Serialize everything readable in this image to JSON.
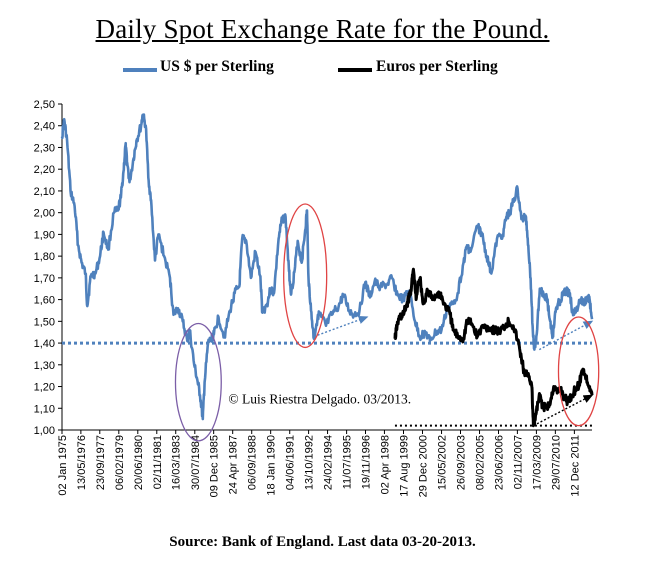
{
  "chart_data": {
    "type": "line",
    "title": "Daily Spot Exchange Rate for the Pound.",
    "source": "Source: Bank of England. Last data 03-20-2013.",
    "annotation": "© Luis Riestra Delgado. 03/2013.",
    "ylim": [
      1.0,
      2.5
    ],
    "yticks": [
      "1,00",
      "1,10",
      "1,20",
      "1,30",
      "1,40",
      "1,50",
      "1,60",
      "1,70",
      "1,80",
      "1,90",
      "2,00",
      "2,10",
      "2,20",
      "2,30",
      "2,40",
      "2,50"
    ],
    "xlim": [
      "1975-01-02",
      "2013-03-20"
    ],
    "xticks": [
      {
        "date": "1975-01-02",
        "label": "02 Jan 1975"
      },
      {
        "date": "1976-05-13",
        "label": "13/05/1976"
      },
      {
        "date": "1977-09-23",
        "label": "23/09/1977"
      },
      {
        "date": "1979-02-06",
        "label": "06/02/1979"
      },
      {
        "date": "1980-06-20",
        "label": "20/06/1980"
      },
      {
        "date": "1981-11-02",
        "label": "02/11/1981"
      },
      {
        "date": "1983-03-16",
        "label": "16/03/1983"
      },
      {
        "date": "1984-07-30",
        "label": "30/07/1984"
      },
      {
        "date": "1985-12-09",
        "label": "09 Dec 1985"
      },
      {
        "date": "1987-04-24",
        "label": "24 Apr 1987"
      },
      {
        "date": "1988-09-06",
        "label": "06/09/1988"
      },
      {
        "date": "1990-01-18",
        "label": "18 Jan 1990"
      },
      {
        "date": "1991-06-04",
        "label": "04/06/1991"
      },
      {
        "date": "1992-10-13",
        "label": "13/10/1992"
      },
      {
        "date": "1994-02-24",
        "label": "24/02/1994"
      },
      {
        "date": "1995-07-11",
        "label": "11/07/1995"
      },
      {
        "date": "1996-11-19",
        "label": "19/11/1996"
      },
      {
        "date": "1998-04-02",
        "label": "02 Apr 1998"
      },
      {
        "date": "1999-08-17",
        "label": "17 Aug 1999"
      },
      {
        "date": "2000-12-29",
        "label": "29 Dec 2000"
      },
      {
        "date": "2002-05-15",
        "label": "15/05/2002"
      },
      {
        "date": "2003-09-26",
        "label": "26/09/2003"
      },
      {
        "date": "2005-02-08",
        "label": "08/02/2005"
      },
      {
        "date": "2006-06-23",
        "label": "23/06/2006"
      },
      {
        "date": "2007-11-02",
        "label": "02/11/2007"
      },
      {
        "date": "2009-03-17",
        "label": "17/03/2009"
      },
      {
        "date": "2010-07-29",
        "label": "29/07/2010"
      },
      {
        "date": "2011-12-12",
        "label": "12 Dec 2011"
      }
    ],
    "legend": {
      "placement": "top"
    },
    "series": [
      {
        "name": "US $ per Sterling",
        "color": "#4f81bd",
        "points": [
          [
            "1975-01-02",
            2.35
          ],
          [
            "1975-03-01",
            2.43
          ],
          [
            "1975-05-15",
            2.33
          ],
          [
            "1975-08-15",
            2.1
          ],
          [
            "1975-12-01",
            2.03
          ],
          [
            "1976-03-01",
            1.85
          ],
          [
            "1976-06-01",
            1.77
          ],
          [
            "1976-09-15",
            1.72
          ],
          [
            "1976-10-28",
            1.57
          ],
          [
            "1977-02-01",
            1.71
          ],
          [
            "1977-06-01",
            1.72
          ],
          [
            "1977-10-01",
            1.8
          ],
          [
            "1977-12-30",
            1.91
          ],
          [
            "1978-05-01",
            1.83
          ],
          [
            "1978-10-01",
            2.0
          ],
          [
            "1979-01-15",
            2.01
          ],
          [
            "1979-04-01",
            2.07
          ],
          [
            "1979-06-10",
            2.19
          ],
          [
            "1979-08-01",
            2.31
          ],
          [
            "1979-09-15",
            2.23
          ],
          [
            "1979-11-15",
            2.14
          ],
          [
            "1980-03-01",
            2.25
          ],
          [
            "1980-05-15",
            2.33
          ],
          [
            "1980-09-15",
            2.4
          ],
          [
            "1980-10-28",
            2.45
          ],
          [
            "1981-01-15",
            2.4
          ],
          [
            "1981-04-01",
            2.15
          ],
          [
            "1981-06-15",
            2.03
          ],
          [
            "1981-09-15",
            1.78
          ],
          [
            "1981-12-15",
            1.9
          ],
          [
            "1982-05-15",
            1.8
          ],
          [
            "1982-10-15",
            1.7
          ],
          [
            "1983-01-15",
            1.53
          ],
          [
            "1983-05-15",
            1.56
          ],
          [
            "1983-09-15",
            1.5
          ],
          [
            "1984-01-15",
            1.41
          ],
          [
            "1984-03-15",
            1.46
          ],
          [
            "1984-07-15",
            1.3
          ],
          [
            "1984-10-15",
            1.22
          ],
          [
            "1984-12-15",
            1.16
          ],
          [
            "1985-02-26",
            1.05
          ],
          [
            "1985-04-15",
            1.22
          ],
          [
            "1985-07-15",
            1.4
          ],
          [
            "1985-10-15",
            1.42
          ],
          [
            "1985-12-15",
            1.44
          ],
          [
            "1986-04-15",
            1.52
          ],
          [
            "1986-09-15",
            1.43
          ],
          [
            "1987-02-15",
            1.55
          ],
          [
            "1987-06-15",
            1.63
          ],
          [
            "1987-10-15",
            1.66
          ],
          [
            "1987-12-31",
            1.88
          ],
          [
            "1988-04-15",
            1.87
          ],
          [
            "1988-08-15",
            1.7
          ],
          [
            "1988-12-15",
            1.82
          ],
          [
            "1989-04-15",
            1.71
          ],
          [
            "1989-06-15",
            1.54
          ],
          [
            "1989-10-15",
            1.58
          ],
          [
            "1990-01-15",
            1.65
          ],
          [
            "1990-04-15",
            1.63
          ],
          [
            "1990-08-15",
            1.88
          ],
          [
            "1990-11-15",
            1.97
          ],
          [
            "1991-02-15",
            1.98
          ],
          [
            "1991-05-15",
            1.73
          ],
          [
            "1991-07-15",
            1.63
          ],
          [
            "1991-10-15",
            1.74
          ],
          [
            "1991-12-31",
            1.87
          ],
          [
            "1992-04-15",
            1.77
          ],
          [
            "1992-07-15",
            1.92
          ],
          [
            "1992-09-01",
            2.01
          ],
          [
            "1992-10-10",
            1.7
          ],
          [
            "1992-12-15",
            1.55
          ],
          [
            "1993-03-01",
            1.42
          ],
          [
            "1993-06-15",
            1.53
          ],
          [
            "1993-09-15",
            1.52
          ],
          [
            "1994-01-15",
            1.48
          ],
          [
            "1994-06-15",
            1.53
          ],
          [
            "1994-12-15",
            1.57
          ],
          [
            "1995-04-15",
            1.62
          ],
          [
            "1995-09-15",
            1.55
          ],
          [
            "1996-01-15",
            1.53
          ],
          [
            "1996-06-15",
            1.55
          ],
          [
            "1996-11-15",
            1.68
          ],
          [
            "1997-03-15",
            1.61
          ],
          [
            "1997-07-15",
            1.68
          ],
          [
            "1997-12-15",
            1.66
          ],
          [
            "1998-06-15",
            1.67
          ],
          [
            "1998-10-15",
            1.7
          ],
          [
            "1999-03-15",
            1.62
          ],
          [
            "1999-08-15",
            1.6
          ],
          [
            "2000-01-15",
            1.64
          ],
          [
            "2000-06-15",
            1.5
          ],
          [
            "2000-10-15",
            1.43
          ],
          [
            "2001-03-15",
            1.45
          ],
          [
            "2001-07-15",
            1.41
          ],
          [
            "2001-12-15",
            1.45
          ],
          [
            "2002-05-15",
            1.46
          ],
          [
            "2002-10-15",
            1.56
          ],
          [
            "2003-03-15",
            1.58
          ],
          [
            "2003-07-15",
            1.63
          ],
          [
            "2003-12-15",
            1.77
          ],
          [
            "2004-03-15",
            1.85
          ],
          [
            "2004-06-15",
            1.82
          ],
          [
            "2004-12-15",
            1.94
          ],
          [
            "2005-04-15",
            1.9
          ],
          [
            "2005-08-15",
            1.8
          ],
          [
            "2005-12-15",
            1.72
          ],
          [
            "2006-05-15",
            1.88
          ],
          [
            "2006-10-15",
            1.9
          ],
          [
            "2007-01-15",
            1.98
          ],
          [
            "2007-04-15",
            2.0
          ],
          [
            "2007-07-15",
            2.05
          ],
          [
            "2007-11-08",
            2.11
          ],
          [
            "2008-02-15",
            1.97
          ],
          [
            "2008-06-15",
            1.98
          ],
          [
            "2008-08-15",
            1.85
          ],
          [
            "2008-10-15",
            1.7
          ],
          [
            "2008-12-15",
            1.45
          ],
          [
            "2009-01-22",
            1.37
          ],
          [
            "2009-03-15",
            1.43
          ],
          [
            "2009-06-15",
            1.65
          ],
          [
            "2009-09-15",
            1.63
          ],
          [
            "2009-12-15",
            1.61
          ],
          [
            "2010-03-15",
            1.5
          ],
          [
            "2010-05-20",
            1.43
          ],
          [
            "2010-08-15",
            1.56
          ],
          [
            "2010-11-15",
            1.59
          ],
          [
            "2011-02-15",
            1.62
          ],
          [
            "2011-05-15",
            1.64
          ],
          [
            "2011-08-15",
            1.63
          ],
          [
            "2011-10-15",
            1.55
          ],
          [
            "2012-01-15",
            1.54
          ],
          [
            "2012-05-15",
            1.6
          ],
          [
            "2012-08-15",
            1.58
          ],
          [
            "2012-11-15",
            1.61
          ],
          [
            "2013-01-15",
            1.6
          ],
          [
            "2013-03-20",
            1.51
          ]
        ]
      },
      {
        "name": "Euros per Sterling",
        "color": "#000000",
        "points": [
          [
            "1999-01-04",
            1.42
          ],
          [
            "1999-03-01",
            1.48
          ],
          [
            "1999-05-15",
            1.52
          ],
          [
            "1999-08-15",
            1.53
          ],
          [
            "1999-11-15",
            1.58
          ],
          [
            "2000-01-15",
            1.61
          ],
          [
            "2000-03-15",
            1.66
          ],
          [
            "2000-05-03",
            1.74
          ],
          [
            "2000-07-15",
            1.6
          ],
          [
            "2000-09-15",
            1.68
          ],
          [
            "2000-10-26",
            1.7
          ],
          [
            "2001-01-15",
            1.58
          ],
          [
            "2001-05-15",
            1.64
          ],
          [
            "2001-09-15",
            1.6
          ],
          [
            "2001-12-15",
            1.62
          ],
          [
            "2002-04-15",
            1.63
          ],
          [
            "2002-07-15",
            1.58
          ],
          [
            "2002-12-15",
            1.54
          ],
          [
            "2003-03-15",
            1.46
          ],
          [
            "2003-07-15",
            1.43
          ],
          [
            "2003-12-15",
            1.42
          ],
          [
            "2004-03-15",
            1.5
          ],
          [
            "2004-07-15",
            1.49
          ],
          [
            "2004-12-15",
            1.43
          ],
          [
            "2005-05-15",
            1.48
          ],
          [
            "2005-10-15",
            1.47
          ],
          [
            "2006-03-15",
            1.46
          ],
          [
            "2006-07-15",
            1.45
          ],
          [
            "2006-12-15",
            1.48
          ],
          [
            "2007-03-15",
            1.5
          ],
          [
            "2007-07-15",
            1.48
          ],
          [
            "2007-11-15",
            1.41
          ],
          [
            "2008-02-15",
            1.33
          ],
          [
            "2008-05-15",
            1.25
          ],
          [
            "2008-08-15",
            1.26
          ],
          [
            "2008-11-15",
            1.2
          ],
          [
            "2008-12-29",
            1.02
          ],
          [
            "2009-03-15",
            1.08
          ],
          [
            "2009-06-15",
            1.16
          ],
          [
            "2009-09-15",
            1.1
          ],
          [
            "2009-12-15",
            1.11
          ],
          [
            "2010-03-15",
            1.12
          ],
          [
            "2010-06-15",
            1.2
          ],
          [
            "2010-09-15",
            1.17
          ],
          [
            "2010-12-15",
            1.19
          ],
          [
            "2011-03-15",
            1.15
          ],
          [
            "2011-06-15",
            1.13
          ],
          [
            "2011-10-15",
            1.16
          ],
          [
            "2012-01-15",
            1.19
          ],
          [
            "2012-04-15",
            1.21
          ],
          [
            "2012-07-23",
            1.28
          ],
          [
            "2012-10-15",
            1.24
          ],
          [
            "2013-01-15",
            1.2
          ],
          [
            "2013-03-20",
            1.16
          ]
        ]
      }
    ],
    "reference_lines": [
      {
        "kind": "horizontal",
        "y": 1.4,
        "from": "1975-01-02",
        "to": "2013-03-20",
        "color": "#4f81bd",
        "style": "dotted"
      },
      {
        "kind": "horizontal",
        "y": 1.02,
        "from": "1999-01-04",
        "to": "2013-03-20",
        "color": "#000000",
        "style": "dotted"
      }
    ],
    "trend_arrows": [
      {
        "from": [
          "1993-03-01",
          1.43
        ],
        "to": [
          "1997-01-01",
          1.52
        ],
        "color": "#4f81bd"
      },
      {
        "from": [
          "2009-06-01",
          1.37
        ],
        "to": [
          "2013-03-20",
          1.5
        ],
        "color": "#4f81bd"
      },
      {
        "from": [
          "2008-12-29",
          1.02
        ],
        "to": [
          "2013-03-20",
          1.16
        ],
        "color": "#000000"
      }
    ],
    "highlight_ellipses": [
      {
        "center": [
          "1984-11-01",
          1.22
        ],
        "rx_years": 1.65,
        "ry": 0.27,
        "color": "#7b5ea7"
      },
      {
        "center": [
          "1992-07-15",
          1.71
        ],
        "rx_years": 1.55,
        "ry": 0.33,
        "color": "#e04444"
      },
      {
        "center": [
          "2012-04-01",
          1.27
        ],
        "rx_years": 1.45,
        "ry": 0.25,
        "color": "#e04444"
      }
    ]
  }
}
